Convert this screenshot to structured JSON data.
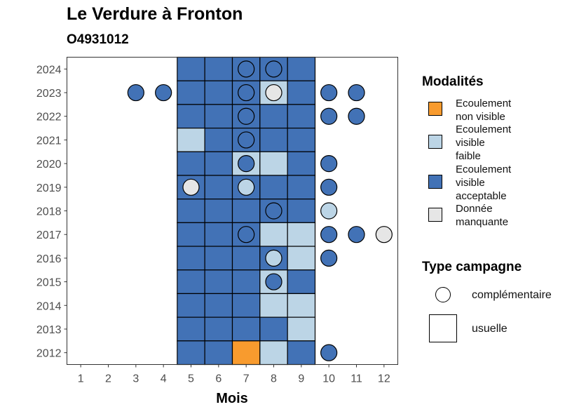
{
  "title": "Le Verdure à Fronton",
  "subtitle": "O4931012",
  "chart_data": {
    "type": "heatmap",
    "xlabel": "Mois",
    "ylabel": "",
    "x_ticks": [
      1,
      2,
      3,
      4,
      5,
      6,
      7,
      8,
      9,
      10,
      11,
      12
    ],
    "y_ticks": [
      2012,
      2013,
      2014,
      2015,
      2016,
      2017,
      2018,
      2019,
      2020,
      2021,
      2022,
      2023,
      2024
    ],
    "xlim": [
      0.5,
      12.5
    ],
    "ylim": [
      2011.5,
      2024.5
    ],
    "colors": {
      "Ecoulement non visible": "#f89b2e",
      "Ecoulement visible faible": "#bcd5e6",
      "Ecoulement visible acceptable": "#4272b6",
      "Donnée manquante": "#e6e6e6"
    },
    "usuelle": [
      {
        "year": 2024,
        "month": 5,
        "modalite": "Ecoulement visible acceptable"
      },
      {
        "year": 2024,
        "month": 6,
        "modalite": "Ecoulement visible acceptable"
      },
      {
        "year": 2024,
        "month": 7,
        "modalite": "Ecoulement visible acceptable"
      },
      {
        "year": 2024,
        "month": 8,
        "modalite": "Ecoulement visible acceptable"
      },
      {
        "year": 2024,
        "month": 9,
        "modalite": "Ecoulement visible acceptable"
      },
      {
        "year": 2023,
        "month": 5,
        "modalite": "Ecoulement visible acceptable"
      },
      {
        "year": 2023,
        "month": 6,
        "modalite": "Ecoulement visible acceptable"
      },
      {
        "year": 2023,
        "month": 7,
        "modalite": "Ecoulement visible acceptable"
      },
      {
        "year": 2023,
        "month": 8,
        "modalite": "Ecoulement visible faible"
      },
      {
        "year": 2023,
        "month": 9,
        "modalite": "Ecoulement visible acceptable"
      },
      {
        "year": 2022,
        "month": 5,
        "modalite": "Ecoulement visible acceptable"
      },
      {
        "year": 2022,
        "month": 6,
        "modalite": "Ecoulement visible acceptable"
      },
      {
        "year": 2022,
        "month": 7,
        "modalite": "Ecoulement visible acceptable"
      },
      {
        "year": 2022,
        "month": 8,
        "modalite": "Ecoulement visible acceptable"
      },
      {
        "year": 2022,
        "month": 9,
        "modalite": "Ecoulement visible acceptable"
      },
      {
        "year": 2021,
        "month": 5,
        "modalite": "Ecoulement visible faible"
      },
      {
        "year": 2021,
        "month": 6,
        "modalite": "Ecoulement visible acceptable"
      },
      {
        "year": 2021,
        "month": 7,
        "modalite": "Ecoulement visible acceptable"
      },
      {
        "year": 2021,
        "month": 8,
        "modalite": "Ecoulement visible acceptable"
      },
      {
        "year": 2021,
        "month": 9,
        "modalite": "Ecoulement visible acceptable"
      },
      {
        "year": 2020,
        "month": 5,
        "modalite": "Ecoulement visible acceptable"
      },
      {
        "year": 2020,
        "month": 6,
        "modalite": "Ecoulement visible acceptable"
      },
      {
        "year": 2020,
        "month": 7,
        "modalite": "Ecoulement visible faible"
      },
      {
        "year": 2020,
        "month": 8,
        "modalite": "Ecoulement visible faible"
      },
      {
        "year": 2020,
        "month": 9,
        "modalite": "Ecoulement visible acceptable"
      },
      {
        "year": 2019,
        "month": 5,
        "modalite": "Ecoulement visible acceptable"
      },
      {
        "year": 2019,
        "month": 6,
        "modalite": "Ecoulement visible acceptable"
      },
      {
        "year": 2019,
        "month": 7,
        "modalite": "Ecoulement visible acceptable"
      },
      {
        "year": 2019,
        "month": 8,
        "modalite": "Ecoulement visible acceptable"
      },
      {
        "year": 2019,
        "month": 9,
        "modalite": "Ecoulement visible acceptable"
      },
      {
        "year": 2018,
        "month": 5,
        "modalite": "Ecoulement visible acceptable"
      },
      {
        "year": 2018,
        "month": 6,
        "modalite": "Ecoulement visible acceptable"
      },
      {
        "year": 2018,
        "month": 7,
        "modalite": "Ecoulement visible acceptable"
      },
      {
        "year": 2018,
        "month": 8,
        "modalite": "Ecoulement visible acceptable"
      },
      {
        "year": 2018,
        "month": 9,
        "modalite": "Ecoulement visible acceptable"
      },
      {
        "year": 2017,
        "month": 5,
        "modalite": "Ecoulement visible acceptable"
      },
      {
        "year": 2017,
        "month": 6,
        "modalite": "Ecoulement visible acceptable"
      },
      {
        "year": 2017,
        "month": 7,
        "modalite": "Ecoulement visible acceptable"
      },
      {
        "year": 2017,
        "month": 8,
        "modalite": "Ecoulement visible faible"
      },
      {
        "year": 2017,
        "month": 9,
        "modalite": "Ecoulement visible faible"
      },
      {
        "year": 2016,
        "month": 5,
        "modalite": "Ecoulement visible acceptable"
      },
      {
        "year": 2016,
        "month": 6,
        "modalite": "Ecoulement visible acceptable"
      },
      {
        "year": 2016,
        "month": 7,
        "modalite": "Ecoulement visible acceptable"
      },
      {
        "year": 2016,
        "month": 8,
        "modalite": "Ecoulement visible acceptable"
      },
      {
        "year": 2016,
        "month": 9,
        "modalite": "Ecoulement visible faible"
      },
      {
        "year": 2015,
        "month": 5,
        "modalite": "Ecoulement visible acceptable"
      },
      {
        "year": 2015,
        "month": 6,
        "modalite": "Ecoulement visible acceptable"
      },
      {
        "year": 2015,
        "month": 7,
        "modalite": "Ecoulement visible acceptable"
      },
      {
        "year": 2015,
        "month": 8,
        "modalite": "Ecoulement visible faible"
      },
      {
        "year": 2015,
        "month": 9,
        "modalite": "Ecoulement visible acceptable"
      },
      {
        "year": 2014,
        "month": 5,
        "modalite": "Ecoulement visible acceptable"
      },
      {
        "year": 2014,
        "month": 6,
        "modalite": "Ecoulement visible acceptable"
      },
      {
        "year": 2014,
        "month": 7,
        "modalite": "Ecoulement visible acceptable"
      },
      {
        "year": 2014,
        "month": 8,
        "modalite": "Ecoulement visible faible"
      },
      {
        "year": 2014,
        "month": 9,
        "modalite": "Ecoulement visible faible"
      },
      {
        "year": 2013,
        "month": 5,
        "modalite": "Ecoulement visible acceptable"
      },
      {
        "year": 2013,
        "month": 6,
        "modalite": "Ecoulement visible acceptable"
      },
      {
        "year": 2013,
        "month": 7,
        "modalite": "Ecoulement visible acceptable"
      },
      {
        "year": 2013,
        "month": 8,
        "modalite": "Ecoulement visible acceptable"
      },
      {
        "year": 2013,
        "month": 9,
        "modalite": "Ecoulement visible faible"
      },
      {
        "year": 2012,
        "month": 5,
        "modalite": "Ecoulement visible acceptable"
      },
      {
        "year": 2012,
        "month": 6,
        "modalite": "Ecoulement visible acceptable"
      },
      {
        "year": 2012,
        "month": 7,
        "modalite": "Ecoulement non visible"
      },
      {
        "year": 2012,
        "month": 8,
        "modalite": "Ecoulement visible faible"
      },
      {
        "year": 2012,
        "month": 9,
        "modalite": "Ecoulement visible acceptable"
      }
    ],
    "complementaire": [
      {
        "year": 2024,
        "month": 7,
        "modalite": "Ecoulement visible acceptable"
      },
      {
        "year": 2024,
        "month": 8,
        "modalite": "Ecoulement visible acceptable"
      },
      {
        "year": 2023,
        "month": 3,
        "modalite": "Ecoulement visible acceptable"
      },
      {
        "year": 2023,
        "month": 4,
        "modalite": "Ecoulement visible acceptable"
      },
      {
        "year": 2023,
        "month": 7,
        "modalite": "Ecoulement visible acceptable"
      },
      {
        "year": 2023,
        "month": 8,
        "modalite": "Donnée manquante"
      },
      {
        "year": 2023,
        "month": 10,
        "modalite": "Ecoulement visible acceptable"
      },
      {
        "year": 2023,
        "month": 11,
        "modalite": "Ecoulement visible acceptable"
      },
      {
        "year": 2022,
        "month": 7,
        "modalite": "Ecoulement visible acceptable"
      },
      {
        "year": 2022,
        "month": 10,
        "modalite": "Ecoulement visible acceptable"
      },
      {
        "year": 2022,
        "month": 11,
        "modalite": "Ecoulement visible acceptable"
      },
      {
        "year": 2021,
        "month": 7,
        "modalite": "Ecoulement visible acceptable"
      },
      {
        "year": 2020,
        "month": 7,
        "modalite": "Ecoulement visible acceptable"
      },
      {
        "year": 2020,
        "month": 10,
        "modalite": "Ecoulement visible acceptable"
      },
      {
        "year": 2019,
        "month": 5,
        "modalite": "Donnée manquante"
      },
      {
        "year": 2019,
        "month": 7,
        "modalite": "Ecoulement visible faible"
      },
      {
        "year": 2019,
        "month": 10,
        "modalite": "Ecoulement visible acceptable"
      },
      {
        "year": 2018,
        "month": 8,
        "modalite": "Ecoulement visible acceptable"
      },
      {
        "year": 2018,
        "month": 10,
        "modalite": "Ecoulement visible faible"
      },
      {
        "year": 2017,
        "month": 7,
        "modalite": "Ecoulement visible acceptable"
      },
      {
        "year": 2017,
        "month": 10,
        "modalite": "Ecoulement visible acceptable"
      },
      {
        "year": 2017,
        "month": 11,
        "modalite": "Ecoulement visible acceptable"
      },
      {
        "year": 2017,
        "month": 12,
        "modalite": "Donnée manquante"
      },
      {
        "year": 2016,
        "month": 8,
        "modalite": "Ecoulement visible faible"
      },
      {
        "year": 2016,
        "month": 10,
        "modalite": "Ecoulement visible acceptable"
      },
      {
        "year": 2015,
        "month": 8,
        "modalite": "Ecoulement visible acceptable"
      },
      {
        "year": 2012,
        "month": 10,
        "modalite": "Ecoulement visible acceptable"
      }
    ]
  },
  "legend": {
    "modalites_title": "Modalités",
    "modalites": [
      {
        "line1": "Ecoulement",
        "line2": "non visible",
        "line3": "",
        "color": "#f89b2e"
      },
      {
        "line1": "Ecoulement",
        "line2": "visible",
        "line3": "faible",
        "color": "#bcd5e6"
      },
      {
        "line1": "Ecoulement",
        "line2": "visible",
        "line3": "acceptable",
        "color": "#4272b6"
      },
      {
        "line1": "Donnée",
        "line2": "manquante",
        "line3": "",
        "color": "#e6e6e6"
      }
    ],
    "type_title": "Type campagne",
    "types": [
      {
        "label": "complémentaire"
      },
      {
        "label": "usuelle"
      }
    ]
  }
}
